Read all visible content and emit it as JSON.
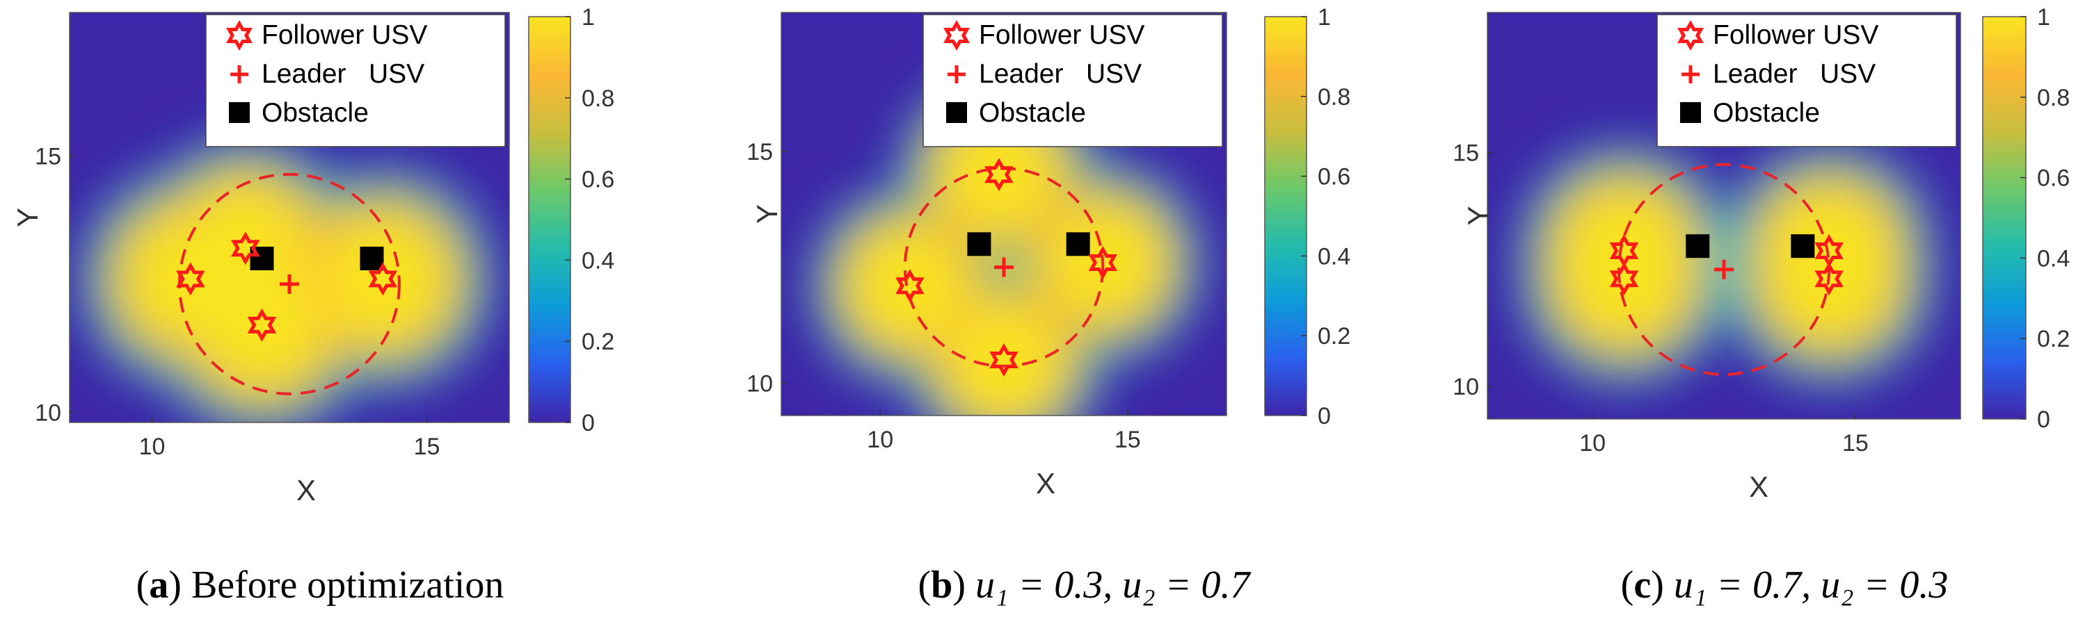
{
  "colors": {
    "follower": "#ff1a1a",
    "leader": "#ff1a1a",
    "obstacle": "#000000",
    "circle": "#e8262a",
    "colormap": [
      "#3e26a8",
      "#2a60ee",
      "#0d9bd9",
      "#24bcab",
      "#6cc86a",
      "#c9be3e",
      "#fbb734",
      "#f9e422"
    ]
  },
  "chart_data": [
    {
      "type": "heatmap",
      "panel": "a",
      "caption": {
        "letter": "a",
        "text": "Before optimization"
      },
      "xlabel": "X",
      "ylabel": "Y",
      "xlim": [
        8.5,
        16.5
      ],
      "ylim": [
        9.8,
        17.8
      ],
      "xticks": [
        10,
        15
      ],
      "yticks": [
        10,
        15
      ],
      "colorbar": {
        "range": [
          0,
          1
        ],
        "ticks": [
          "0",
          "0.2",
          "0.4",
          "0.6",
          "0.8",
          "1"
        ]
      },
      "legend": {
        "position": "top-right",
        "entries": [
          "Follower USV",
          "Leader   USV",
          "Obstacle"
        ]
      },
      "formation_circle": {
        "center": [
          12.5,
          12.5
        ],
        "radius": 2.0
      },
      "leader": [
        12.5,
        12.5
      ],
      "followers": [
        [
          10.7,
          12.6
        ],
        [
          11.7,
          13.2
        ],
        [
          12.0,
          11.7
        ],
        [
          14.2,
          12.6
        ]
      ],
      "obstacles": [
        [
          12.0,
          13.0
        ],
        [
          14.0,
          13.0
        ]
      ]
    },
    {
      "type": "heatmap",
      "panel": "b",
      "caption": {
        "letter": "b",
        "text": "u₁ = 0.3, u₂ = 0.7"
      },
      "xlabel": "X",
      "ylabel": "Y",
      "xlim": [
        8.0,
        17.0
      ],
      "ylim": [
        9.3,
        18.0
      ],
      "xticks": [
        10,
        15
      ],
      "yticks": [
        10,
        15
      ],
      "colorbar": {
        "range": [
          0,
          1
        ],
        "ticks": [
          "0",
          "0.2",
          "0.4",
          "0.6",
          "0.8",
          "1"
        ]
      },
      "legend": {
        "position": "top-right",
        "entries": [
          "Follower USV",
          "Leader   USV",
          "Obstacle"
        ]
      },
      "formation_circle": {
        "center": [
          12.5,
          12.5
        ],
        "radius": 2.0
      },
      "leader": [
        12.5,
        12.5
      ],
      "followers": [
        [
          12.4,
          14.5
        ],
        [
          10.6,
          12.1
        ],
        [
          14.5,
          12.6
        ],
        [
          12.5,
          10.5
        ]
      ],
      "obstacles": [
        [
          12.0,
          13.0
        ],
        [
          14.0,
          13.0
        ]
      ]
    },
    {
      "type": "heatmap",
      "panel": "c",
      "caption": {
        "letter": "c",
        "text": "u₁ = 0.7, u₂ = 0.3"
      },
      "xlabel": "X",
      "ylabel": "Y",
      "xlim": [
        8.0,
        17.0
      ],
      "ylim": [
        9.3,
        18.0
      ],
      "xticks": [
        10,
        15
      ],
      "yticks": [
        10,
        15
      ],
      "colorbar": {
        "range": [
          0,
          1
        ],
        "ticks": [
          "0",
          "0.2",
          "0.4",
          "0.6",
          "0.8",
          "1"
        ]
      },
      "legend": {
        "position": "top-right",
        "entries": [
          "Follower USV",
          "Leader   USV",
          "Obstacle"
        ]
      },
      "formation_circle": {
        "center": [
          12.5,
          12.5
        ],
        "radius": 2.0
      },
      "leader": [
        12.5,
        12.5
      ],
      "followers": [
        [
          10.6,
          12.9
        ],
        [
          10.6,
          12.3
        ],
        [
          14.5,
          12.9
        ],
        [
          14.5,
          12.3
        ]
      ],
      "obstacles": [
        [
          12.0,
          13.0
        ],
        [
          14.0,
          13.0
        ]
      ]
    }
  ]
}
